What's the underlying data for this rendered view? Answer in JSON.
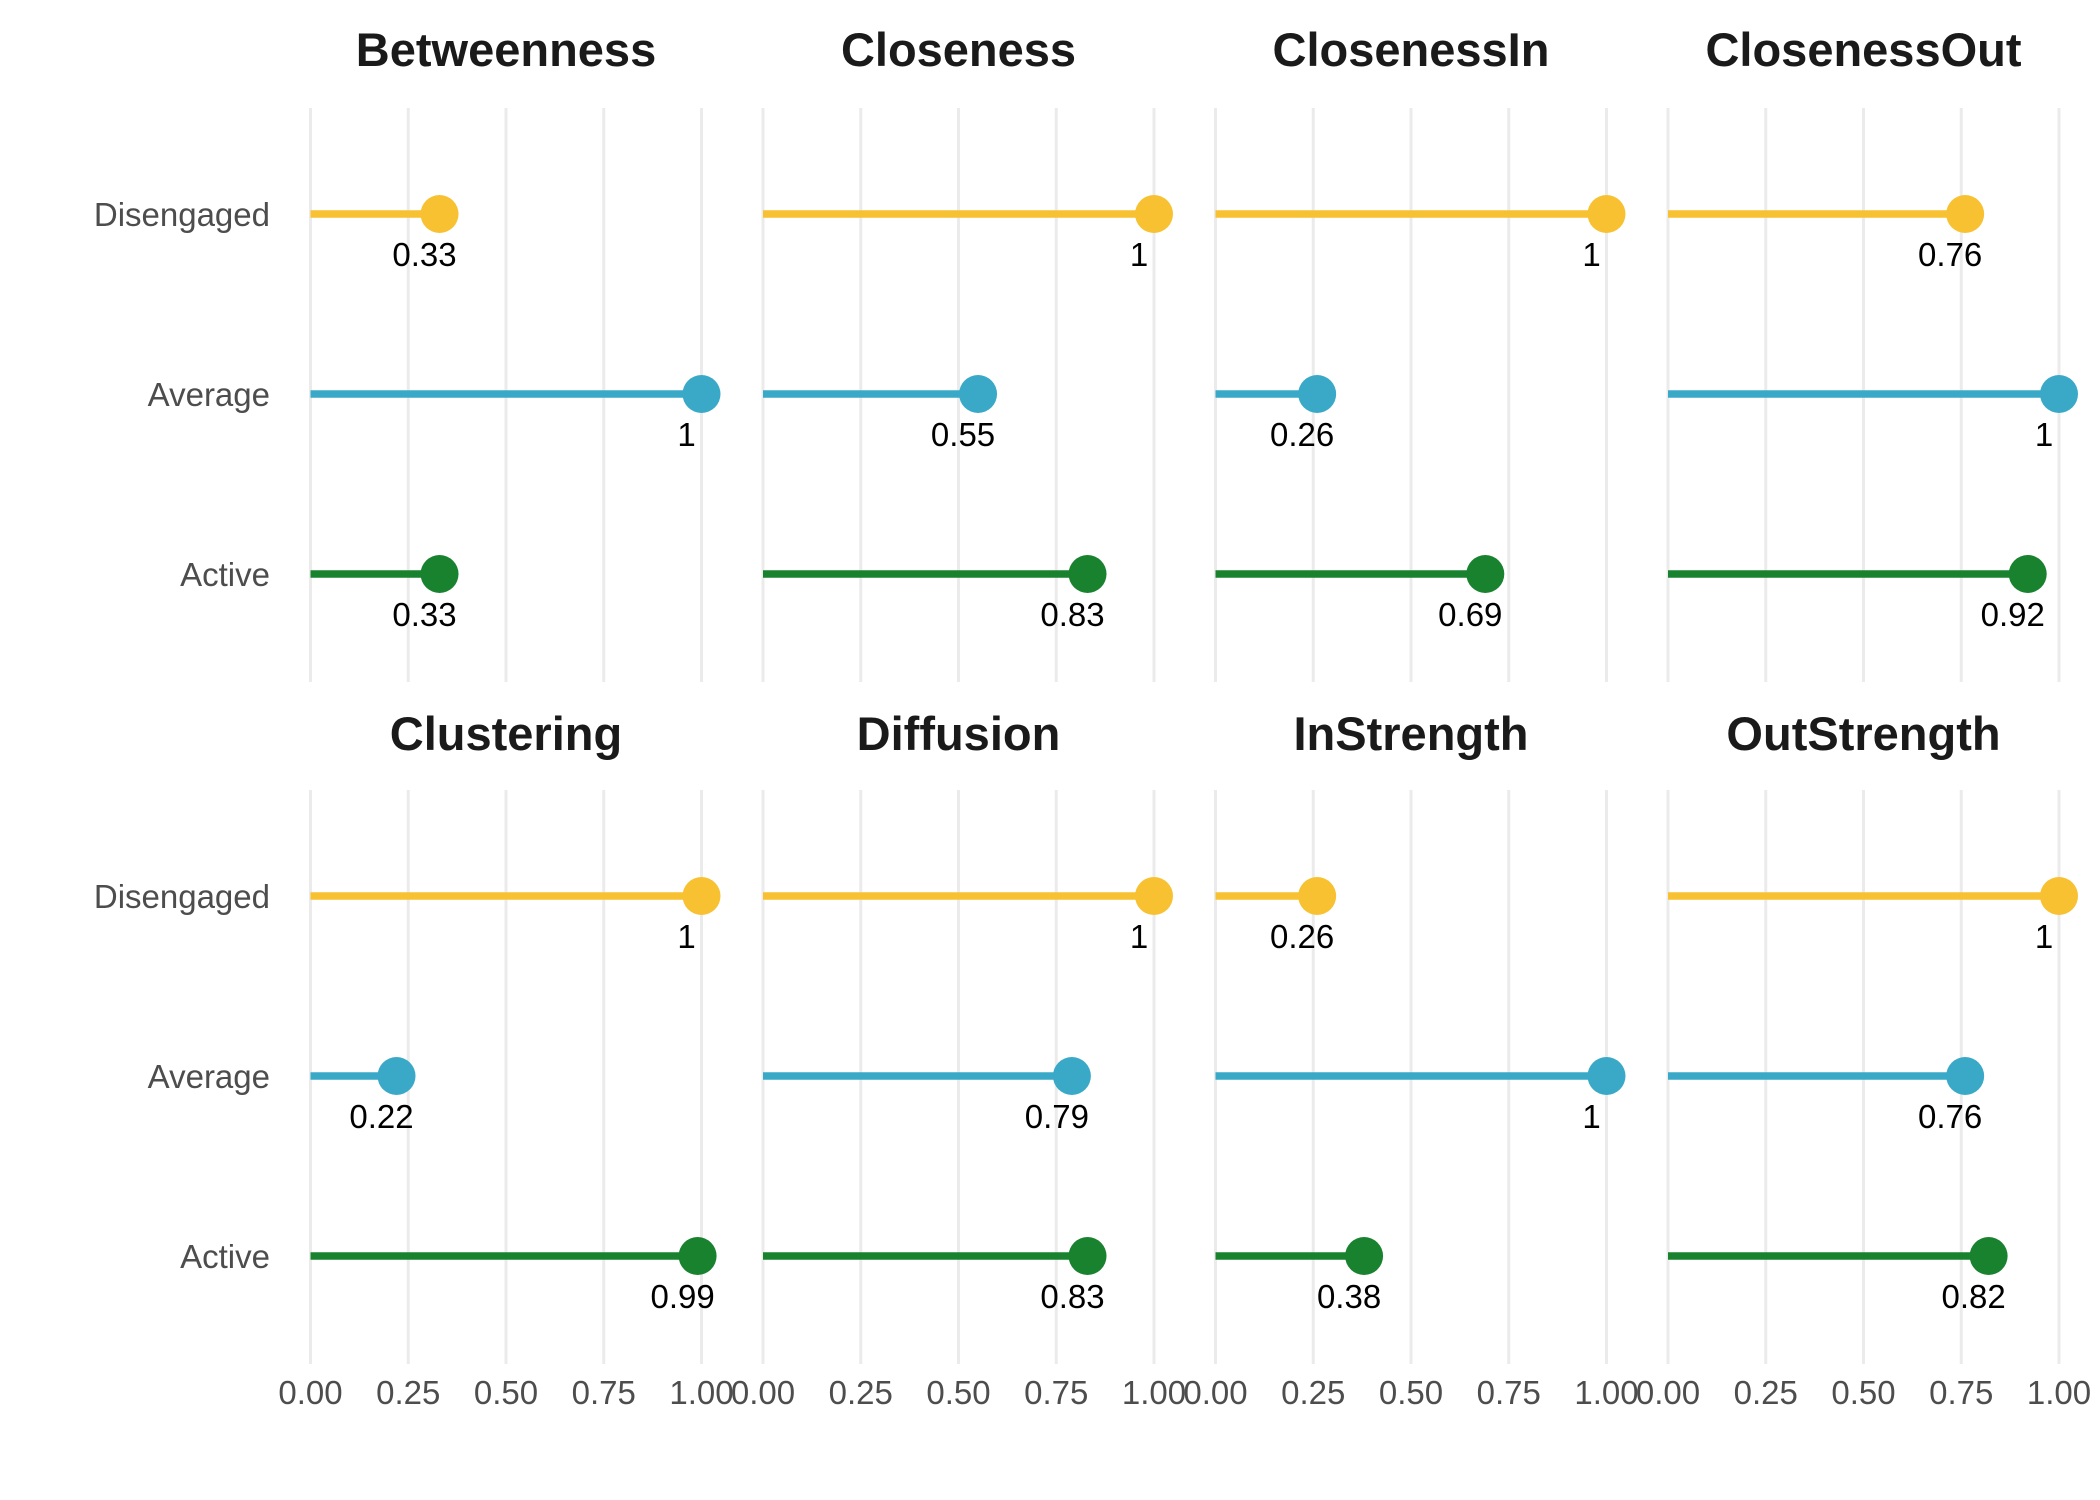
{
  "chart_data": {
    "type": "lollipop",
    "categories": [
      "Disengaged",
      "Average",
      "Active"
    ],
    "xlim": [
      0,
      1
    ],
    "x_ticks": [
      "0.00",
      "0.25",
      "0.50",
      "0.75",
      "1.00"
    ],
    "grid": true,
    "colors": {
      "Disengaged": "#f8c131",
      "Average": "#3aa9c8",
      "Active": "#19822f"
    },
    "panels": [
      {
        "title": "Betweenness",
        "values": [
          0.33,
          1,
          0.33
        ],
        "labels": [
          "0.33",
          "1",
          "0.33"
        ]
      },
      {
        "title": "Closeness",
        "values": [
          1,
          0.55,
          0.83
        ],
        "labels": [
          "1",
          "0.55",
          "0.83"
        ]
      },
      {
        "title": "ClosenessIn",
        "values": [
          1,
          0.26,
          0.69
        ],
        "labels": [
          "1",
          "0.26",
          "0.69"
        ]
      },
      {
        "title": "ClosenessOut",
        "values": [
          0.76,
          1,
          0.92
        ],
        "labels": [
          "0.76",
          "1",
          "0.92"
        ]
      },
      {
        "title": "Clustering",
        "values": [
          1,
          0.22,
          0.99
        ],
        "labels": [
          "1",
          "0.22",
          "0.99"
        ]
      },
      {
        "title": "Diffusion",
        "values": [
          1,
          0.79,
          0.83
        ],
        "labels": [
          "1",
          "0.79",
          "0.83"
        ]
      },
      {
        "title": "InStrength",
        "values": [
          0.26,
          1,
          0.38
        ],
        "labels": [
          "0.26",
          "1",
          "0.38"
        ]
      },
      {
        "title": "OutStrength",
        "values": [
          1,
          0.76,
          0.82
        ],
        "labels": [
          "1",
          "0.76",
          "0.82"
        ]
      }
    ]
  }
}
